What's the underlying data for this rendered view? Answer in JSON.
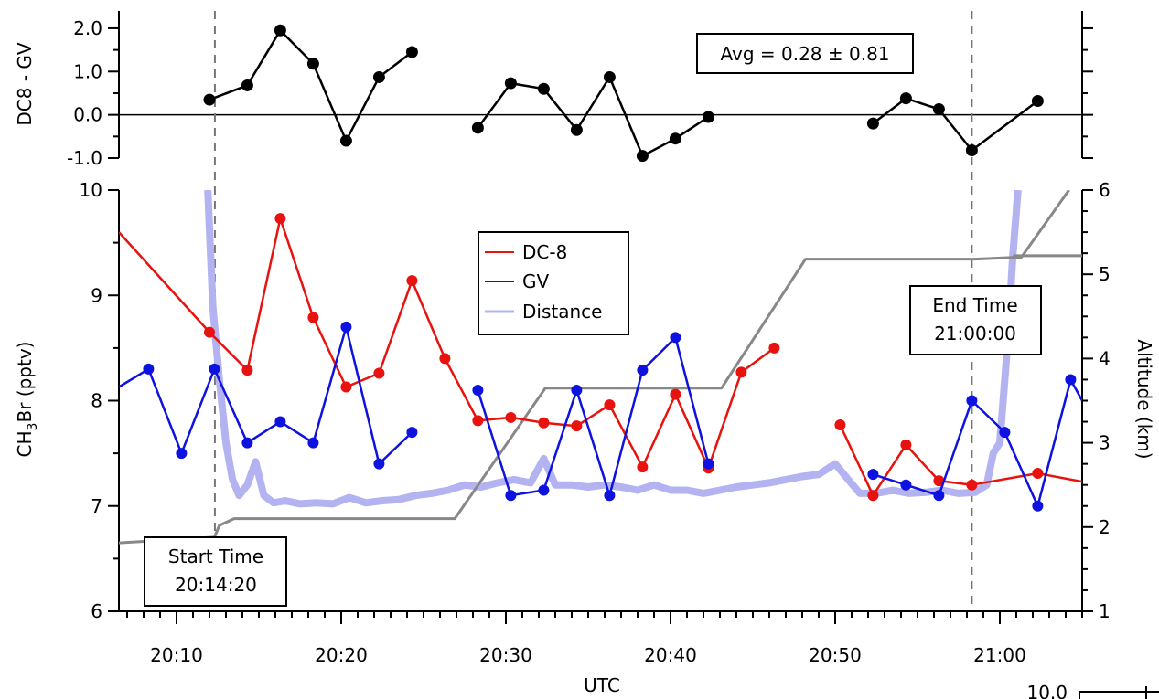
{
  "chart_data": [
    {
      "type": "scatter",
      "panel": "difference",
      "ylabel": "DC8 - GV",
      "ylim": [
        -1.0,
        2.4
      ],
      "y_ticks": [
        "2.0",
        "1.0",
        "0.0",
        "-1.0"
      ],
      "annotation": "Avg = 0.28 ± 0.81",
      "zero_line": true,
      "series": [
        {
          "color": "#000000",
          "segments": [
            [
              [
                12,
                0.35
              ],
              [
                14.3,
                0.68
              ],
              [
                16.3,
                1.95
              ],
              [
                18.3,
                1.18
              ],
              [
                20.3,
                -0.6
              ],
              [
                22.3,
                0.87
              ],
              [
                24.3,
                1.45
              ]
            ],
            [
              [
                28.3,
                -0.3
              ],
              [
                30.3,
                0.73
              ],
              [
                32.3,
                0.6
              ],
              [
                34.3,
                -0.35
              ],
              [
                36.3,
                0.87
              ],
              [
                38.3,
                -0.95
              ],
              [
                40.3,
                -0.55
              ],
              [
                42.3,
                -0.05
              ]
            ],
            [
              [
                52.3,
                -0.2
              ],
              [
                54.3,
                0.38
              ],
              [
                56.3,
                0.13
              ],
              [
                58.3,
                -0.82
              ],
              [
                62.3,
                0.32
              ]
            ]
          ]
        }
      ]
    },
    {
      "type": "line",
      "panel": "main",
      "xlabel": "UTC",
      "ylabel": "CH3Br (pptv)",
      "ylabel_main": "CH",
      "ylabel_sub": "3",
      "ylabel_rest": "Br (pptv)",
      "y2label": "Altitude (km)",
      "xlim_minutes_after_2000": [
        6.5,
        65
      ],
      "ylim": [
        6,
        10
      ],
      "y2lim": [
        1,
        6
      ],
      "x_ticks": [
        "20:10",
        "20:20",
        "20:30",
        "20:40",
        "20:50",
        "21:00"
      ],
      "y_ticks": [
        "6",
        "7",
        "8",
        "9",
        "10"
      ],
      "y2_ticks": [
        "1",
        "2",
        "3",
        "4",
        "5",
        "6"
      ],
      "legend": {
        "position": "top-center",
        "entries": [
          "DC-8",
          "GV",
          "Distance"
        ]
      },
      "vertical_lines_x": [
        12.33,
        58.3
      ],
      "annotations": [
        {
          "line1": "Start Time",
          "line2": "20:14:20"
        },
        {
          "line1": "End Time",
          "line2": "21:00:00"
        }
      ],
      "series": [
        {
          "name": "DC-8",
          "color": "#e8120e",
          "axis": "left",
          "segments": [
            [
              [
                6.5,
                9.6
              ],
              [
                12,
                8.65
              ],
              [
                14.3,
                8.29
              ],
              [
                16.3,
                9.73
              ],
              [
                18.3,
                8.79
              ],
              [
                20.3,
                8.13
              ],
              [
                22.3,
                8.26
              ],
              [
                24.3,
                9.14
              ],
              [
                26.3,
                8.4
              ],
              [
                28.3,
                7.81
              ],
              [
                30.3,
                7.84
              ],
              [
                32.3,
                7.79
              ],
              [
                34.3,
                7.76
              ],
              [
                36.3,
                7.96
              ],
              [
                38.3,
                7.37
              ],
              [
                40.3,
                8.06
              ],
              [
                42.3,
                7.36
              ],
              [
                44.3,
                8.27
              ],
              [
                46.3,
                8.5
              ]
            ],
            [
              [
                50.3,
                7.77
              ],
              [
                52.3,
                7.1
              ],
              [
                54.3,
                7.58
              ],
              [
                56.3,
                7.24
              ],
              [
                58.3,
                7.2
              ],
              [
                62.3,
                7.31
              ],
              [
                65,
                7.23
              ]
            ]
          ],
          "markers_x": [
            12,
            14.3,
            16.3,
            18.3,
            20.3,
            22.3,
            24.3,
            26.3,
            28.3,
            30.3,
            32.3,
            34.3,
            36.3,
            38.3,
            40.3,
            42.3,
            44.3,
            46.3,
            50.3,
            52.3,
            54.3,
            56.3,
            58.3,
            62.3
          ]
        },
        {
          "name": "GV",
          "color": "#0d12e0",
          "axis": "left",
          "segments": [
            [
              [
                6.5,
                8.13
              ],
              [
                8.3,
                8.3
              ],
              [
                10.3,
                7.5
              ],
              [
                12.3,
                8.3
              ],
              [
                14.3,
                7.6
              ],
              [
                16.3,
                7.8
              ],
              [
                18.3,
                7.6
              ],
              [
                20.3,
                8.7
              ],
              [
                22.3,
                7.4
              ],
              [
                24.3,
                7.7
              ]
            ],
            [
              [
                28.3,
                8.1
              ],
              [
                30.3,
                7.1
              ],
              [
                32.3,
                7.15
              ],
              [
                34.3,
                8.1
              ],
              [
                36.3,
                7.1
              ],
              [
                38.3,
                8.29
              ],
              [
                40.3,
                8.6
              ],
              [
                42.3,
                7.4
              ]
            ],
            [
              [
                52.3,
                7.3
              ],
              [
                54.3,
                7.2
              ],
              [
                56.3,
                7.1
              ],
              [
                58.3,
                8.0
              ],
              [
                60.3,
                7.7
              ],
              [
                62.3,
                7.0
              ],
              [
                64.3,
                8.2
              ],
              [
                65,
                8.0
              ]
            ]
          ],
          "markers_x": [
            8.3,
            10.3,
            12.3,
            14.3,
            16.3,
            18.3,
            20.3,
            22.3,
            24.3,
            28.3,
            30.3,
            32.3,
            34.3,
            36.3,
            38.3,
            40.3,
            42.3,
            52.3,
            54.3,
            56.3,
            58.3,
            60.3,
            62.3,
            64.3
          ]
        },
        {
          "name": "Distance",
          "color": "#b3b3f2",
          "axis": "left",
          "points": [
            [
              11.9,
              10.0
            ],
            [
              12.2,
              8.9
            ],
            [
              12.6,
              8.2
            ],
            [
              13.0,
              7.6
            ],
            [
              13.4,
              7.25
            ],
            [
              13.8,
              7.1
            ],
            [
              14.3,
              7.2
            ],
            [
              14.8,
              7.42
            ],
            [
              15.3,
              7.1
            ],
            [
              15.9,
              7.03
            ],
            [
              16.6,
              7.05
            ],
            [
              17.5,
              7.02
            ],
            [
              18.5,
              7.03
            ],
            [
              19.5,
              7.02
            ],
            [
              20.5,
              7.08
            ],
            [
              21.5,
              7.03
            ],
            [
              22.5,
              7.05
            ],
            [
              23.5,
              7.06
            ],
            [
              24.5,
              7.1
            ],
            [
              25.5,
              7.12
            ],
            [
              26.5,
              7.15
            ],
            [
              27.5,
              7.2
            ],
            [
              28.5,
              7.18
            ],
            [
              29.5,
              7.22
            ],
            [
              30.5,
              7.25
            ],
            [
              31.5,
              7.22
            ],
            [
              32.3,
              7.45
            ],
            [
              33,
              7.2
            ],
            [
              34,
              7.2
            ],
            [
              35,
              7.18
            ],
            [
              36,
              7.2
            ],
            [
              37,
              7.18
            ],
            [
              38,
              7.15
            ],
            [
              39,
              7.2
            ],
            [
              40,
              7.15
            ],
            [
              41,
              7.15
            ],
            [
              42,
              7.12
            ],
            [
              43,
              7.15
            ],
            [
              44,
              7.18
            ],
            [
              45,
              7.2
            ],
            [
              46,
              7.22
            ],
            [
              47,
              7.25
            ],
            [
              48,
              7.28
            ],
            [
              49,
              7.3
            ],
            [
              50,
              7.4
            ],
            [
              50.8,
              7.25
            ],
            [
              51.5,
              7.12
            ],
            [
              52.5,
              7.12
            ],
            [
              53.5,
              7.15
            ],
            [
              54.5,
              7.12
            ],
            [
              55.5,
              7.13
            ],
            [
              56.5,
              7.15
            ],
            [
              57.5,
              7.12
            ],
            [
              58.5,
              7.13
            ],
            [
              59.2,
              7.2
            ],
            [
              59.6,
              7.5
            ],
            [
              60.0,
              7.6
            ],
            [
              60.4,
              8.4
            ],
            [
              60.8,
              9.4
            ],
            [
              61.1,
              10.0
            ]
          ]
        },
        {
          "name": "Altitude",
          "color": "#888888",
          "axis": "right",
          "segments": [
            [
              [
                5.5,
                1.8
              ],
              [
                12.3,
                1.88
              ],
              [
                12.6,
                2.02
              ],
              [
                13.5,
                2.1
              ],
              [
                26.9,
                2.1
              ],
              [
                32.4,
                3.65
              ],
              [
                43.1,
                3.65
              ],
              [
                48.2,
                5.18
              ],
              [
                58.5,
                5.18
              ],
              [
                60.8,
                5.2
              ],
              [
                61.3,
                5.2
              ],
              [
                64.2,
                6.0
              ]
            ],
            [
              [
                60.8,
                5.22
              ],
              [
                65,
                5.22
              ]
            ]
          ]
        }
      ]
    }
  ],
  "corner_fragment": {
    "label": "10.0"
  }
}
